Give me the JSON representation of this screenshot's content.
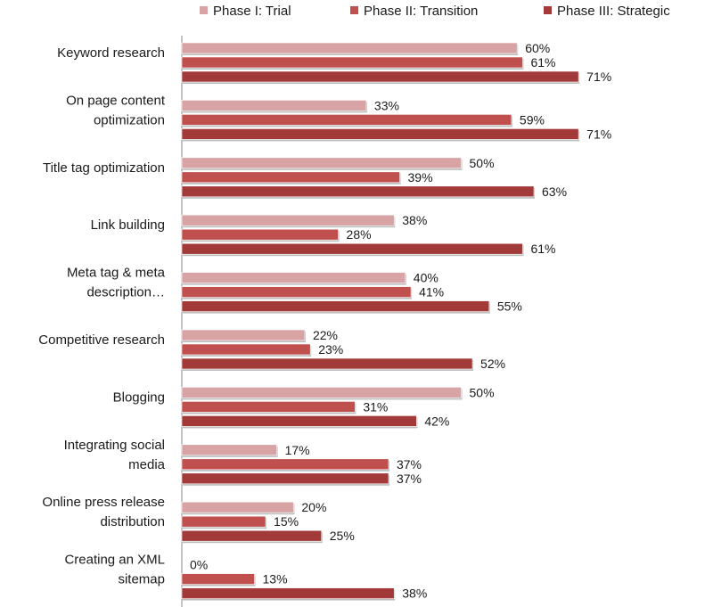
{
  "chart_data": {
    "type": "bar",
    "orientation": "horizontal",
    "title": "",
    "xlabel": "",
    "ylabel": "",
    "xlim": [
      0,
      100
    ],
    "grid": false,
    "legend": "top",
    "categories": [
      [
        "Keyword research"
      ],
      [
        "On page content",
        "optimization"
      ],
      [
        "Title tag optimization"
      ],
      [
        "Link building"
      ],
      [
        "Meta tag & meta",
        "description…"
      ],
      [
        "Competitive research"
      ],
      [
        "Blogging"
      ],
      [
        "Integrating social",
        "media"
      ],
      [
        "Online press release",
        "distribution"
      ],
      [
        "Creating an XML",
        "sitemap"
      ]
    ],
    "series": [
      {
        "name": "Phase I: Trial",
        "color": "#d8a3a5",
        "values": [
          60,
          33,
          50,
          38,
          40,
          22,
          50,
          17,
          20,
          0
        ]
      },
      {
        "name": "Phase II: Transition",
        "color": "#c0504d",
        "values": [
          61,
          59,
          39,
          28,
          41,
          23,
          31,
          37,
          15,
          13
        ]
      },
      {
        "name": "Phase III: Strategic",
        "color": "#a33a3a",
        "values": [
          71,
          71,
          63,
          61,
          55,
          52,
          42,
          37,
          25,
          38
        ]
      }
    ],
    "value_suffix": "%"
  }
}
